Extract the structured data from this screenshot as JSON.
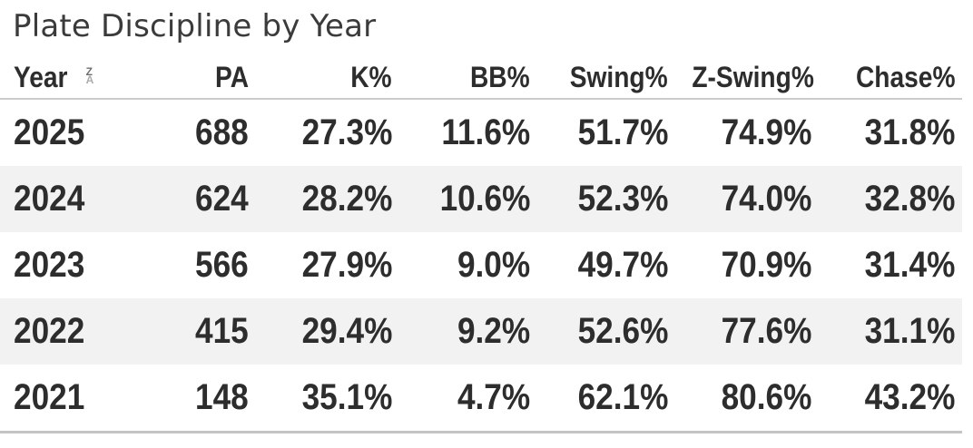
{
  "title": "Plate Discipline by Year",
  "sort": {
    "column": "Year",
    "direction": "descending",
    "icon_top": "Z",
    "icon_bottom": "A"
  },
  "chart_data": {
    "type": "table",
    "title": "Plate Discipline by Year",
    "columns": [
      "Year",
      "PA",
      "K%",
      "BB%",
      "Swing%",
      "Z-Swing%",
      "Chase%"
    ],
    "rows": [
      [
        "2025",
        "688",
        "27.3%",
        "11.6%",
        "51.7%",
        "74.9%",
        "31.8%"
      ],
      [
        "2024",
        "624",
        "28.2%",
        "10.6%",
        "52.3%",
        "74.0%",
        "32.8%"
      ],
      [
        "2023",
        "566",
        "27.9%",
        "9.0%",
        "49.7%",
        "70.9%",
        "31.4%"
      ],
      [
        "2022",
        "415",
        "29.4%",
        "9.2%",
        "52.6%",
        "77.6%",
        "31.1%"
      ],
      [
        "2021",
        "148",
        "35.1%",
        "4.7%",
        "62.1%",
        "80.6%",
        "43.2%"
      ]
    ],
    "sort": {
      "column": "Year",
      "direction": "descending"
    },
    "layout": {
      "striped_rows": true,
      "stripe_on": [
        "2024",
        "2022"
      ]
    }
  },
  "colors": {
    "title_text": "#3b3b3b",
    "table_text": "#2d2d2d",
    "row_stripe": "#f2f2f2",
    "header_border": "#cbcbcb",
    "bottom_border": "#c4c4c4",
    "sort_icon_active": "#6f6f6f",
    "sort_icon_inactive": "#ababab"
  }
}
